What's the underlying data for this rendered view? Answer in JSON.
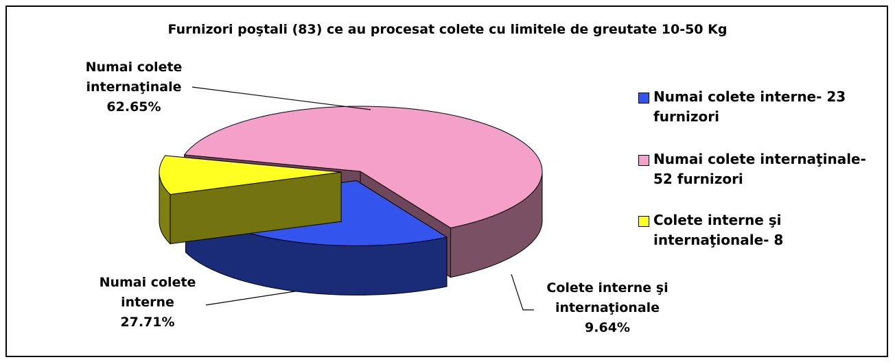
{
  "chart_data": {
    "type": "pie",
    "title": "Furnizori poştali (83) ce au procesat colete cu limitele de greutate 10-50 Kg",
    "categories": [
      "Numai colete interne",
      "Numai colete internaţinale",
      "Colete interne şi internaţionale"
    ],
    "values": [
      27.71,
      62.65,
      9.64
    ],
    "value_labels": [
      "27.71%",
      "62.65%",
      "9.64%"
    ],
    "colors": [
      "#3355ee",
      "#f4a0c8",
      "#ffff22"
    ],
    "legend": [
      "Numai colete interne- 23 furnizori",
      "Numai colete internaţinale- 52 furnizori",
      "Colete interne şi internaţionale- 8"
    ],
    "legend_position": "right"
  }
}
